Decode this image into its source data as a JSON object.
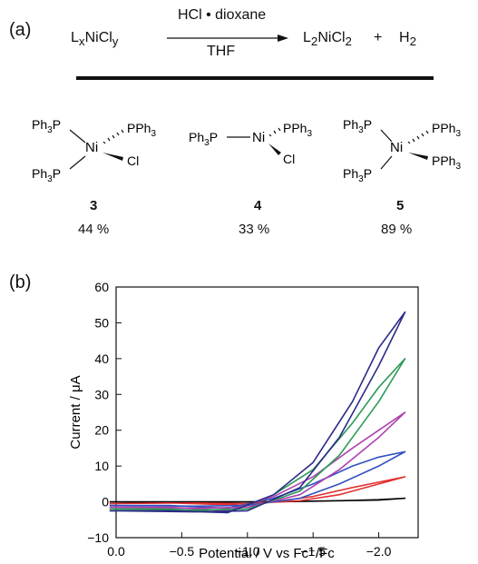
{
  "panel_a": {
    "label": "(a)",
    "reaction": {
      "reactant_main": "L",
      "reactant_sub1": "x",
      "reactant_mid": "NiCl",
      "reactant_sub2": "y",
      "reagent_above": "HCl • dioxane",
      "reagent_below": "THF",
      "product1_main": "L",
      "product1_sub1": "2",
      "product1_mid": "NiCl",
      "product1_sub2": "2",
      "plus": "+",
      "product2_main": "H",
      "product2_sub": "2"
    },
    "complexes": [
      {
        "id": "3",
        "yield": "44 %",
        "labels": {
          "ul": "Ph3P",
          "ur": "PPh3",
          "ll": "Ph3P",
          "lr": "Cl",
          "center": "Ni"
        }
      },
      {
        "id": "4",
        "yield": "33 %",
        "labels": {
          "left": "Ph3P",
          "ur": "PPh3",
          "lr": "Cl",
          "center": "Ni"
        }
      },
      {
        "id": "5",
        "yield": "89 %",
        "labels": {
          "ul": "Ph3P",
          "ur": "PPh3",
          "ll": "Ph3P",
          "lr": "PPh3",
          "center": "Ni"
        }
      }
    ]
  },
  "panel_b": {
    "label": "(b)",
    "chart_data": {
      "type": "line",
      "xlabel": "Potential / V vs Fc⁺/Fc",
      "ylabel": "Current / μA",
      "xlim": [
        0.0,
        -2.3
      ],
      "ylim": [
        -10,
        60
      ],
      "x_ticks": [
        "0.0",
        "−0.5",
        "−1.0",
        "−1.5",
        "−2.0"
      ],
      "x_tick_values": [
        0.0,
        -0.5,
        -1.0,
        -1.5,
        -2.0
      ],
      "y_ticks": [
        "−10",
        "0",
        "10",
        "20",
        "30",
        "40",
        "50",
        "60"
      ],
      "y_tick_values": [
        -10,
        0,
        10,
        20,
        30,
        40,
        50,
        60
      ],
      "grid": false,
      "series": [
        {
          "color": "#000000",
          "x": [
            0.05,
            -0.4,
            -0.8,
            -1.2,
            -1.5,
            -1.8,
            -2.0,
            -2.2,
            -2.0,
            -1.5,
            -1.0,
            -0.5,
            0.05
          ],
          "y": [
            0,
            0,
            0,
            0,
            0.2,
            0.4,
            0.6,
            1,
            0.5,
            0.2,
            0,
            -0.1,
            0
          ]
        },
        {
          "color": "#e03030",
          "x": [
            0.05,
            -0.4,
            -0.85,
            -1.2,
            -1.5,
            -1.8,
            -2.0,
            -2.2,
            -2.0,
            -1.7,
            -1.4,
            -1.0,
            -0.6,
            0.05
          ],
          "y": [
            -0.5,
            -0.3,
            -0.8,
            0,
            1.5,
            4,
            5.5,
            7,
            5,
            2,
            0.3,
            -0.5,
            -0.3,
            -0.5
          ]
        },
        {
          "color": "#3050c0",
          "x": [
            0.05,
            -0.4,
            -0.85,
            -1.2,
            -1.5,
            -1.8,
            -2.0,
            -2.2,
            -2.0,
            -1.7,
            -1.4,
            -1.0,
            -0.6,
            0.05
          ],
          "y": [
            -1,
            -1,
            -1.8,
            1,
            5,
            10,
            12.5,
            14,
            10,
            5,
            1,
            -1,
            -1.2,
            -1
          ]
        },
        {
          "color": "#b040b0",
          "x": [
            0.05,
            -0.4,
            -0.85,
            -1.2,
            -1.5,
            -1.8,
            -2.0,
            -2.2,
            -2.0,
            -1.7,
            -1.4,
            -1.0,
            -0.6,
            0.05
          ],
          "y": [
            -1.5,
            -1.5,
            -2.5,
            1.5,
            7,
            15,
            20,
            25,
            18,
            9,
            2,
            -1.5,
            -1.8,
            -1.5
          ]
        },
        {
          "color": "#2a9a55",
          "x": [
            0.05,
            -0.4,
            -0.85,
            -1.2,
            -1.5,
            -1.8,
            -2.0,
            -2.2,
            -2.0,
            -1.7,
            -1.4,
            -1.0,
            -0.6,
            0.05
          ],
          "y": [
            -2,
            -2,
            -3,
            2,
            9,
            22,
            32,
            40,
            28,
            13,
            3,
            -2,
            -2.3,
            -2
          ]
        },
        {
          "color": "#2a2a88",
          "x": [
            0.05,
            -0.4,
            -0.85,
            -1.2,
            -1.5,
            -1.8,
            -2.0,
            -2.2,
            -2.0,
            -1.7,
            -1.4,
            -1.0,
            -0.6,
            0.05
          ],
          "y": [
            -2.5,
            -2.5,
            -3,
            2,
            11,
            28,
            43,
            53,
            38,
            18,
            4,
            -2.5,
            -2.8,
            -2.5
          ]
        }
      ]
    }
  }
}
